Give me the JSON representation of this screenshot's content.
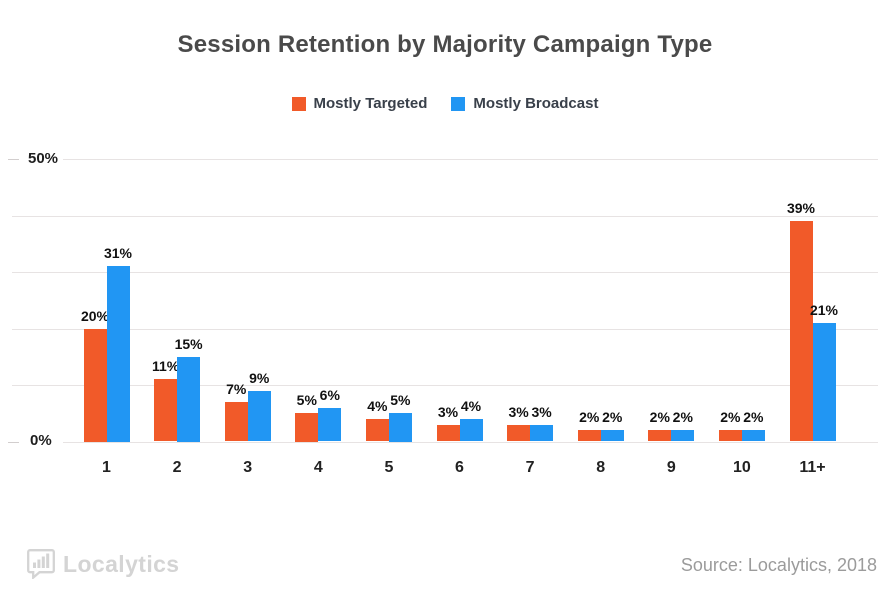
{
  "title": "Session Retention by Majority Campaign Type",
  "legend": [
    {
      "label": "Mostly Targeted",
      "color": "#F15A29"
    },
    {
      "label": "Mostly Broadcast",
      "color": "#2196F3"
    }
  ],
  "chart_data": {
    "type": "bar",
    "title": "Session Retention by Majority Campaign Type",
    "categories": [
      "1",
      "2",
      "3",
      "4",
      "5",
      "6",
      "7",
      "8",
      "9",
      "10",
      "11+"
    ],
    "series": [
      {
        "name": "Mostly Targeted",
        "color": "#F15A29",
        "values": [
          20,
          11,
          7,
          5,
          4,
          3,
          3,
          2,
          2,
          2,
          39
        ]
      },
      {
        "name": "Mostly Broadcast",
        "color": "#2196F3",
        "values": [
          31,
          15,
          9,
          6,
          5,
          4,
          3,
          2,
          2,
          2,
          21
        ]
      }
    ],
    "value_suffix": "%",
    "xlabel": "",
    "ylabel": "",
    "ylim": [
      0,
      50
    ],
    "ytick_step": 10,
    "ytick_labels_shown": [
      "0%",
      "50%"
    ],
    "grid": "horizontal",
    "legend_position": "top-center",
    "colors": {
      "grid": "#E7E3E3",
      "value_label": "#111111"
    }
  },
  "yaxis": {
    "top_label": "50%",
    "bottom_label": "0%"
  },
  "footer": {
    "logo_text": "Localytics",
    "logo_icon": "bar-chart-speech-bubble-icon",
    "source": "Source: Localytics, 2018"
  }
}
